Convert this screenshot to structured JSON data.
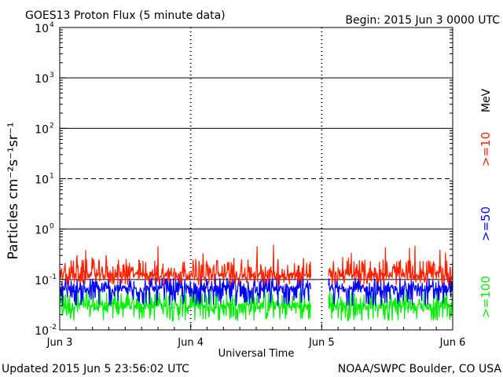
{
  "header": {
    "title": "GOES13 Proton Flux (5 minute data)",
    "begin": "Begin: 2015 Jun 3 0000 UTC"
  },
  "footer": {
    "updated": "Updated 2015 Jun  5 23:56:02 UTC",
    "credit": "NOAA/SWPC Boulder, CO USA"
  },
  "chart_data": {
    "type": "line",
    "title": "GOES13 Proton Flux (5 minute data)",
    "xlabel": "Universal Time",
    "ylabel": "Particles cm⁻²s⁻¹sr⁻¹",
    "yscale": "log",
    "ylim": [
      0.01,
      10000
    ],
    "xlim_days": [
      0,
      3
    ],
    "x_ticks": [
      {
        "day": 0,
        "label": "Jun 3"
      },
      {
        "day": 1,
        "label": "Jun 4"
      },
      {
        "day": 2,
        "label": "Jun 5"
      },
      {
        "day": 3,
        "label": "Jun 6"
      }
    ],
    "y_ticks": [
      {
        "value": 10000,
        "base": "10",
        "exp": "4"
      },
      {
        "value": 1000,
        "base": "10",
        "exp": "3"
      },
      {
        "value": 100,
        "base": "10",
        "exp": "2"
      },
      {
        "value": 10,
        "base": "10",
        "exp": "1"
      },
      {
        "value": 1,
        "base": "10",
        "exp": "0"
      },
      {
        "value": 0.1,
        "base": "10",
        "exp": "-1"
      },
      {
        "value": 0.01,
        "base": "10",
        "exp": "-2"
      }
    ],
    "grid_solid": [
      1000,
      100,
      1,
      0.1
    ],
    "grid_dashed": [
      10
    ],
    "data_gap_days": [
      1.92,
      2.05
    ],
    "legend_unit": "MeV",
    "series": [
      {
        "name": ">=10",
        "color": "#ff2000",
        "typical": 0.12,
        "low": 0.075,
        "high": 0.25,
        "max_spike": 0.5
      },
      {
        "name": ">=50",
        "color": "#0000ff",
        "typical": 0.065,
        "low": 0.03,
        "high": 0.11,
        "max_spike": 0.12
      },
      {
        "name": ">=100",
        "color": "#00ee00",
        "typical": 0.03,
        "low": 0.015,
        "high": 0.06,
        "max_spike": 0.07
      }
    ]
  }
}
